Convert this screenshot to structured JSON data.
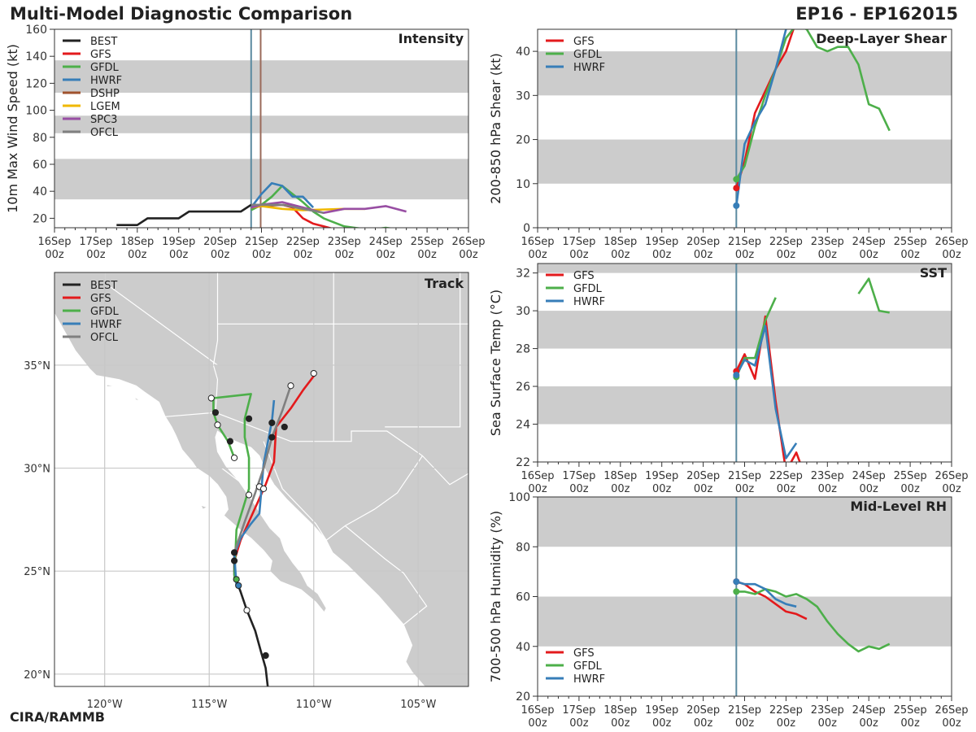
{
  "header": {
    "title": "Multi-Model Diagnostic Comparison",
    "storm_id": "EP16 - EP162015",
    "footer": "CIRA/RAMMB"
  },
  "colors": {
    "BEST": "#222222",
    "GFS": "#e31a1c",
    "GFDL": "#4daf4a",
    "HWRF": "#377eb8",
    "DSHP": "#a0522d",
    "LGEM": "#f0b800",
    "SPC3": "#984ea3",
    "OFCL": "#808080",
    "band": "#cccccc",
    "land": "#cccccc",
    "ocean": "#ffffff"
  },
  "time_ticks": [
    "16Sep\n00z",
    "17Sep\n00z",
    "18Sep\n00z",
    "19Sep\n00z",
    "20Sep\n00z",
    "21Sep\n00z",
    "22Sep\n00z",
    "23Sep\n00z",
    "24Sep\n00z",
    "25Sep\n00z",
    "26Sep\n00z"
  ],
  "chart_data": [
    {
      "id": "intensity",
      "type": "line",
      "title": "Intensity",
      "ylabel": "10m Max Wind Speed (kt)",
      "xlim": [
        0,
        10
      ],
      "ylim": [
        13,
        160
      ],
      "yticks": [
        20,
        40,
        60,
        80,
        100,
        120,
        140,
        160
      ],
      "bands": [
        [
          34,
          64
        ],
        [
          83,
          96
        ],
        [
          113,
          137
        ]
      ],
      "vlines": [
        {
          "x": 4.75,
          "color": "#5b8aa0"
        },
        {
          "x": 4.98,
          "color": "#9a6a5a"
        }
      ],
      "legend": [
        "BEST",
        "GFS",
        "GFDL",
        "HWRF",
        "DSHP",
        "LGEM",
        "SPC3",
        "OFCL"
      ],
      "series": [
        {
          "name": "BEST",
          "x": [
            1.5,
            2,
            2.25,
            3,
            3.25,
            4,
            4.5,
            4.75
          ],
          "y": [
            15,
            15,
            20,
            20,
            25,
            25,
            25,
            30
          ]
        },
        {
          "name": "GFS",
          "x": [
            4.75,
            5,
            5.25,
            5.5,
            5.75,
            6,
            6.25,
            6.5,
            6.75
          ],
          "y": [
            28,
            30,
            30,
            30,
            28,
            20,
            16,
            14,
            12
          ]
        },
        {
          "name": "GFDL",
          "x": [
            4.75,
            5,
            5.25,
            5.5,
            5.75,
            6,
            6.25,
            6.5,
            6.75,
            7,
            7.25,
            7.5,
            7.75,
            8,
            8.25,
            8.5,
            8.75,
            9
          ],
          "y": [
            26,
            30,
            36,
            44,
            38,
            32,
            25,
            20,
            17,
            14,
            13,
            12,
            12,
            13,
            12,
            12,
            11,
            10
          ]
        },
        {
          "name": "HWRF",
          "x": [
            4.75,
            5,
            5.25,
            5.5,
            5.75,
            6,
            6.25
          ],
          "y": [
            28,
            38,
            46,
            44,
            36,
            36,
            28
          ]
        },
        {
          "name": "DSHP",
          "x": [
            4.75,
            5,
            5.5,
            6
          ],
          "y": [
            28,
            29,
            30,
            28
          ]
        },
        {
          "name": "LGEM",
          "x": [
            4.75,
            5,
            5.5,
            6,
            7,
            7.5
          ],
          "y": [
            28,
            29,
            27,
            26,
            27,
            27
          ]
        },
        {
          "name": "SPC3",
          "x": [
            4.75,
            5,
            5.5,
            6,
            6.5,
            7,
            7.5,
            8,
            8.5
          ],
          "y": [
            28,
            30,
            32,
            28,
            24,
            27,
            27,
            29,
            25
          ]
        },
        {
          "name": "OFCL",
          "x": [
            4.75,
            5,
            5.5,
            6,
            6.5
          ],
          "y": [
            30,
            30,
            30,
            27,
            24
          ]
        }
      ]
    },
    {
      "id": "shear",
      "type": "line",
      "title": "Deep-Layer Shear",
      "ylabel": "200-850 hPa Shear (kt)",
      "xlim": [
        0,
        10
      ],
      "ylim": [
        0,
        45
      ],
      "yticks": [
        0,
        10,
        20,
        30,
        40
      ],
      "bands": [
        [
          10,
          20
        ],
        [
          30,
          40
        ]
      ],
      "vlines": [
        {
          "x": 4.8,
          "color": "#5b8aa0"
        }
      ],
      "legend": [
        "GFS",
        "GFDL",
        "HWRF"
      ],
      "series": [
        {
          "name": "GFS",
          "x": [
            4.8,
            5,
            5.25,
            5.5,
            5.75,
            6,
            6.25
          ],
          "y": [
            9,
            15,
            26,
            31,
            36,
            40,
            47
          ]
        },
        {
          "name": "GFDL",
          "x": [
            4.8,
            5,
            5.25,
            5.5,
            5.75,
            6,
            6.25,
            6.5,
            6.75,
            7,
            7.25,
            7.5,
            7.75,
            8,
            8.25,
            8.5
          ],
          "y": [
            11,
            14,
            23,
            30,
            36,
            43,
            46,
            45,
            41,
            40,
            41,
            41,
            37,
            28,
            27,
            22
          ]
        },
        {
          "name": "HWRF",
          "x": [
            4.8,
            5,
            5.25,
            5.5,
            5.75,
            6
          ],
          "y": [
            5,
            19,
            24,
            28,
            36,
            45
          ]
        }
      ],
      "markers": [
        {
          "series": "GFS",
          "x": 4.8,
          "y": 9
        },
        {
          "series": "GFDL",
          "x": 4.8,
          "y": 11
        },
        {
          "series": "HWRF",
          "x": 4.8,
          "y": 5
        }
      ]
    },
    {
      "id": "sst",
      "type": "line",
      "title": "SST",
      "ylabel": "Sea Surface Temp (°C)",
      "xlim": [
        0,
        10
      ],
      "ylim": [
        22,
        32.5
      ],
      "yticks": [
        22,
        24,
        26,
        28,
        30,
        32
      ],
      "bands": [
        [
          24,
          26
        ],
        [
          28,
          30
        ],
        [
          32,
          33
        ]
      ],
      "vlines": [
        {
          "x": 4.8,
          "color": "#5b8aa0"
        }
      ],
      "legend": [
        "GFS",
        "GFDL",
        "HWRF"
      ],
      "series": [
        {
          "name": "GFS",
          "x": [
            4.8,
            5,
            5.25,
            5.5,
            5.75,
            6,
            6.25,
            6.5
          ],
          "y": [
            26.8,
            27.7,
            26.4,
            29.7,
            25.2,
            21.5,
            22.5,
            21
          ]
        },
        {
          "name": "GFDL",
          "x": [
            4.8,
            5,
            5.25,
            5.5,
            5.75
          ],
          "y": [
            26.5,
            27.5,
            27.5,
            29.5,
            30.7
          ]
        },
        {
          "name": "GFDL",
          "x": [
            7.75,
            8,
            8.25,
            8.5
          ],
          "y": [
            30.9,
            31.7,
            30,
            29.9
          ]
        },
        {
          "name": "HWRF",
          "x": [
            4.8,
            5,
            5.25,
            5.5,
            5.75,
            6,
            6.25
          ],
          "y": [
            26.6,
            27.4,
            27.1,
            29.2,
            24.8,
            22.2,
            23
          ]
        }
      ],
      "markers": [
        {
          "series": "GFS",
          "x": 4.8,
          "y": 26.8
        },
        {
          "series": "GFDL",
          "x": 4.8,
          "y": 26.5
        },
        {
          "series": "HWRF",
          "x": 4.8,
          "y": 26.6
        }
      ]
    },
    {
      "id": "rh",
      "type": "line",
      "title": "Mid-Level RH",
      "ylabel": "700-500 hPa Humidity (%)",
      "xlim": [
        0,
        10
      ],
      "ylim": [
        20,
        100
      ],
      "yticks": [
        20,
        40,
        60,
        80,
        100
      ],
      "bands": [
        [
          40,
          60
        ],
        [
          80,
          100
        ]
      ],
      "vlines": [
        {
          "x": 4.8,
          "color": "#5b8aa0"
        }
      ],
      "legend": [
        "GFS",
        "GFDL",
        "HWRF"
      ],
      "legend_pos": "bottom-left",
      "series": [
        {
          "name": "GFS",
          "x": [
            4.8,
            5,
            5.25,
            5.5,
            5.75,
            6,
            6.25,
            6.5
          ],
          "y": [
            66,
            65,
            62,
            60,
            57,
            54,
            53,
            51
          ]
        },
        {
          "name": "GFDL",
          "x": [
            4.8,
            5,
            5.25,
            5.5,
            5.75,
            6,
            6.25,
            6.5,
            6.75,
            7,
            7.25,
            7.5,
            7.75,
            8,
            8.25,
            8.5
          ],
          "y": [
            62,
            62,
            61,
            63,
            62,
            60,
            61,
            59,
            56,
            50,
            45,
            41,
            38,
            40,
            39,
            41
          ]
        },
        {
          "name": "HWRF",
          "x": [
            4.8,
            5,
            5.25,
            5.5,
            5.75,
            6,
            6.25
          ],
          "y": [
            66,
            65,
            65,
            63,
            59,
            57,
            56
          ]
        }
      ],
      "markers": [
        {
          "series": "GFS",
          "x": 4.8,
          "y": 66
        },
        {
          "series": "GFDL",
          "x": 4.8,
          "y": 62
        },
        {
          "series": "HWRF",
          "x": 4.8,
          "y": 66
        }
      ]
    },
    {
      "id": "track",
      "type": "map",
      "title": "Track",
      "lon_range": [
        -122.4,
        -102.6
      ],
      "lat_range": [
        19.4,
        39.5
      ],
      "lon_ticks": [
        -120,
        -115,
        -110,
        -105
      ],
      "lon_labels": [
        "120°W",
        "115°W",
        "110°W",
        "105°W"
      ],
      "lat_ticks": [
        20,
        25,
        30,
        35
      ],
      "lat_labels": [
        "20°N",
        "25°N",
        "30°N",
        "35°N"
      ],
      "legend": [
        "BEST",
        "GFS",
        "GFDL",
        "HWRF",
        "OFCL"
      ],
      "series": [
        {
          "name": "BEST",
          "lon": [
            -112.2,
            -112.3,
            -112.5,
            -112.8,
            -113.2,
            -113.5,
            -113.8,
            -113.8
          ],
          "lat": [
            19.4,
            20.3,
            21.0,
            22.1,
            23.1,
            24.0,
            24.8,
            25.9
          ]
        },
        {
          "name": "GFS",
          "lon": [
            -113.8,
            -113.5,
            -113.1,
            -112.7,
            -112.3,
            -111.9,
            -111.8,
            -111.1,
            -110.5,
            -109.9
          ],
          "lat": [
            25.5,
            26.5,
            27.4,
            28.3,
            29.2,
            30.3,
            32.0,
            32.9,
            33.8,
            34.6
          ]
        },
        {
          "name": "GFDL",
          "lon": [
            -113.8,
            -113.7,
            -113.1,
            -113.1,
            -113.3,
            -113.3,
            -113.0,
            -114.8,
            -114.8,
            -114.6,
            -114.1,
            -113.8
          ],
          "lat": [
            24.6,
            27.0,
            29.0,
            30.5,
            31.5,
            32.4,
            33.6,
            33.4,
            32.7,
            32.1,
            31.3,
            30.5
          ]
        },
        {
          "name": "HWRF",
          "lon": [
            -113.7,
            -113.8,
            -113.5,
            -113.0,
            -112.6,
            -112.4,
            -112.0,
            -111.9
          ],
          "lat": [
            24.3,
            25.8,
            26.6,
            27.3,
            27.8,
            30.2,
            32.3,
            33.3
          ]
        },
        {
          "name": "OFCL",
          "lon": [
            -113.8,
            -113.3,
            -112.8,
            -112.4,
            -112.0,
            -111.5,
            -111.1
          ],
          "lat": [
            25.9,
            27.4,
            28.8,
            30.0,
            31.5,
            32.8,
            34.0
          ]
        }
      ],
      "points": [
        {
          "lon": -112.3,
          "lat": 20.9,
          "fill": "#222222"
        },
        {
          "lon": -113.2,
          "lat": 23.1,
          "fill": "#ffffff"
        },
        {
          "lon": -113.8,
          "lat": 25.9,
          "fill": "#222222"
        },
        {
          "lon": -113.8,
          "lat": 25.5,
          "fill": "#222222"
        },
        {
          "lon": -113.1,
          "lat": 28.7,
          "fill": "#ffffff"
        },
        {
          "lon": -112.6,
          "lat": 29.1,
          "fill": "#ffffff"
        },
        {
          "lon": -112.4,
          "lat": 29.0,
          "fill": "#ffffff"
        },
        {
          "lon": -112.0,
          "lat": 31.5,
          "fill": "#222222"
        },
        {
          "lon": -112.0,
          "lat": 32.2,
          "fill": "#222222"
        },
        {
          "lon": -111.4,
          "lat": 32.0,
          "fill": "#222222"
        },
        {
          "lon": -111.1,
          "lat": 34.0,
          "fill": "#ffffff"
        },
        {
          "lon": -110.0,
          "lat": 34.6,
          "fill": "#ffffff"
        },
        {
          "lon": -113.1,
          "lat": 32.4,
          "fill": "#222222"
        },
        {
          "lon": -114.9,
          "lat": 33.4,
          "fill": "#ffffff"
        },
        {
          "lon": -114.7,
          "lat": 32.7,
          "fill": "#222222"
        },
        {
          "lon": -114.6,
          "lat": 32.1,
          "fill": "#ffffff"
        },
        {
          "lon": -114.0,
          "lat": 31.3,
          "fill": "#222222"
        },
        {
          "lon": -113.8,
          "lat": 30.5,
          "fill": "#ffffff"
        },
        {
          "lon": -113.7,
          "lat": 24.6,
          "fill": "#4daf4a"
        },
        {
          "lon": -113.6,
          "lat": 24.3,
          "fill": "#377eb8"
        }
      ]
    }
  ]
}
